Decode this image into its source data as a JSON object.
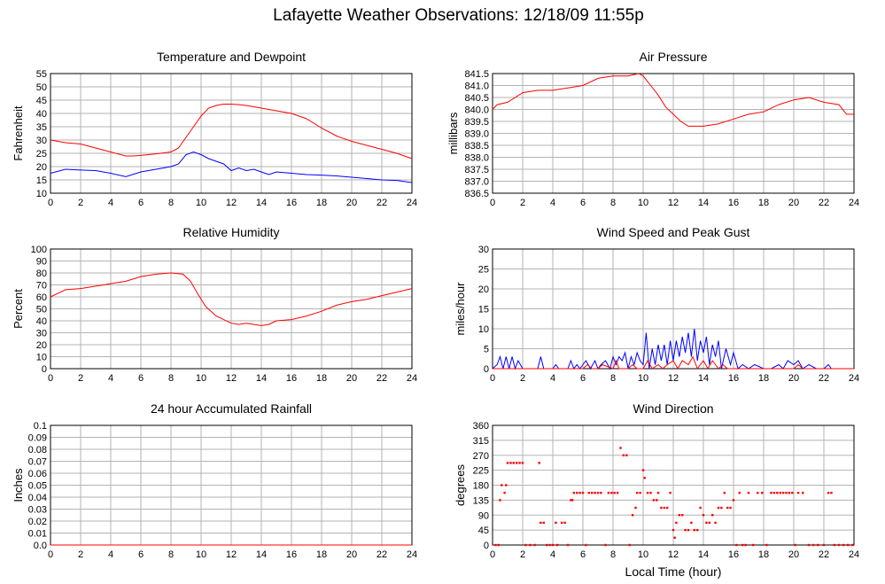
{
  "title": "Lafayette Weather Observations: 12/18/09 11:55p",
  "xlabel_bottom": "Local Time (hour)",
  "colors": {
    "red": "#ff0000",
    "blue": "#0000ff",
    "grid": "#b3b3b3",
    "axis": "#000000"
  },
  "chart_data": [
    {
      "id": "temp",
      "type": "line",
      "title": "Temperature and Dewpoint",
      "ylabel": "Fahrenheit",
      "xlim": [
        0,
        24
      ],
      "ylim": [
        10,
        55
      ],
      "xticks": [
        0,
        2,
        4,
        6,
        8,
        10,
        12,
        14,
        16,
        18,
        20,
        22,
        24
      ],
      "yticks": [
        10,
        15,
        20,
        25,
        30,
        35,
        40,
        45,
        50,
        55
      ],
      "ytick_labels": [
        "10",
        "15",
        "20",
        "25",
        "30",
        "35",
        "40",
        "45",
        "50",
        "55"
      ],
      "series": [
        {
          "color": "#ff0000",
          "x": [
            0,
            1,
            2,
            3,
            4,
            5,
            5.5,
            6,
            7,
            8,
            8.5,
            9,
            9.5,
            10,
            10.5,
            11,
            11.5,
            12,
            12.5,
            13,
            13.5,
            14,
            15,
            16,
            17,
            18,
            19,
            20,
            21,
            22,
            23,
            24
          ],
          "y": [
            30,
            29,
            28.5,
            27,
            25.5,
            24,
            24,
            24.2,
            24.8,
            25.5,
            27,
            31,
            35,
            39,
            42,
            43,
            43.5,
            43.5,
            43.3,
            43,
            42.5,
            42,
            41,
            40,
            38,
            34.5,
            31.5,
            29.5,
            28,
            26.5,
            25,
            23
          ]
        },
        {
          "color": "#0000ff",
          "x": [
            0,
            1,
            2,
            3,
            4,
            5,
            6,
            7,
            8,
            8.5,
            9,
            9.5,
            10,
            10.5,
            11,
            11.5,
            12,
            12.5,
            13,
            13.5,
            14,
            14.5,
            15,
            16,
            17,
            18,
            19,
            20,
            21,
            22,
            23,
            24
          ],
          "y": [
            17.5,
            19,
            18.7,
            18.5,
            17.5,
            16.2,
            18,
            19,
            20,
            21,
            24.5,
            25.5,
            24.5,
            23,
            22,
            21,
            18.5,
            19.5,
            18.5,
            19,
            18,
            17,
            18,
            17.5,
            17,
            16.8,
            16.5,
            16,
            15.5,
            15,
            14.8,
            14
          ]
        }
      ]
    },
    {
      "id": "pressure",
      "type": "line",
      "title": "Air Pressure",
      "ylabel": "millibars",
      "xlim": [
        0,
        24
      ],
      "ylim": [
        836.5,
        841.5
      ],
      "xticks": [
        0,
        2,
        4,
        6,
        8,
        10,
        12,
        14,
        16,
        18,
        20,
        22,
        24
      ],
      "yticks": [
        836.5,
        837.0,
        837.5,
        838.0,
        838.5,
        839.0,
        839.5,
        840.0,
        840.5,
        841.0,
        841.5
      ],
      "ytick_labels": [
        "836.5",
        "837.0",
        "837.5",
        "838.0",
        "838.5",
        "839.0",
        "839.5",
        "840.0",
        "840.5",
        "841.0",
        "841.5"
      ],
      "series": [
        {
          "color": "#ff0000",
          "x": [
            0,
            0.3,
            1,
            2,
            3,
            4,
            5,
            6,
            7,
            8,
            9,
            9.7,
            10,
            10.5,
            11,
            11.5,
            12,
            12.5,
            13,
            14,
            15,
            16,
            17,
            18,
            19,
            20,
            21,
            22,
            23,
            23.5,
            24
          ],
          "y": [
            840.0,
            840.2,
            840.3,
            840.7,
            840.8,
            840.8,
            840.9,
            841.0,
            841.3,
            841.4,
            841.4,
            841.5,
            841.4,
            841.0,
            840.6,
            840.1,
            839.8,
            839.5,
            839.3,
            839.3,
            839.4,
            839.6,
            839.8,
            839.9,
            840.2,
            840.4,
            840.5,
            840.3,
            840.2,
            839.8,
            839.8
          ]
        }
      ]
    },
    {
      "id": "humidity",
      "type": "line",
      "title": "Relative Humidity",
      "ylabel": "Percent",
      "xlim": [
        0,
        24
      ],
      "ylim": [
        0,
        100
      ],
      "xticks": [
        0,
        2,
        4,
        6,
        8,
        10,
        12,
        14,
        16,
        18,
        20,
        22,
        24
      ],
      "yticks": [
        0,
        10,
        20,
        30,
        40,
        50,
        60,
        70,
        80,
        90,
        100
      ],
      "ytick_labels": [
        "0",
        "10",
        "20",
        "30",
        "40",
        "50",
        "60",
        "70",
        "80",
        "90",
        "100"
      ],
      "series": [
        {
          "color": "#ff0000",
          "x": [
            0,
            0.5,
            1,
            2,
            3,
            4,
            5,
            6,
            7,
            8,
            8.8,
            9.3,
            9.8,
            10.3,
            11,
            11.5,
            12,
            12.5,
            13,
            13.5,
            14,
            14.5,
            15,
            16,
            17,
            18,
            19,
            20,
            21,
            22,
            23,
            24
          ],
          "y": [
            60,
            63,
            66,
            67,
            69,
            71,
            73,
            77,
            79,
            80,
            79,
            73,
            62,
            52,
            44,
            41,
            38,
            37,
            38,
            37,
            36,
            37,
            40,
            41,
            44,
            48,
            53,
            56,
            58,
            61,
            64,
            67
          ]
        }
      ]
    },
    {
      "id": "wind",
      "type": "line",
      "title": "Wind Speed and Peak Gust",
      "ylabel": "miles/hour",
      "xlim": [
        0,
        24
      ],
      "ylim": [
        0,
        30
      ],
      "xticks": [
        0,
        2,
        4,
        6,
        8,
        10,
        12,
        14,
        16,
        18,
        20,
        22,
        24
      ],
      "yticks": [
        0,
        5,
        10,
        15,
        20,
        25,
        30
      ],
      "ytick_labels": [
        "0",
        "5",
        "10",
        "15",
        "20",
        "25",
        "30"
      ],
      "series": [
        {
          "color": "#0000ff",
          "x": [
            0,
            0.3,
            0.5,
            0.7,
            0.9,
            1.1,
            1.3,
            1.5,
            1.7,
            2,
            3,
            3.2,
            3.4,
            4,
            4.2,
            4.4,
            5,
            5.2,
            5.4,
            5.6,
            5.8,
            6,
            6.2,
            6.5,
            6.8,
            7,
            7.2,
            7.5,
            7.8,
            8,
            8.2,
            8.4,
            8.6,
            8.8,
            9,
            9.2,
            9.4,
            9.6,
            9.8,
            10,
            10.2,
            10.4,
            10.6,
            10.8,
            11,
            11.2,
            11.4,
            11.6,
            11.8,
            12,
            12.2,
            12.4,
            12.6,
            12.8,
            13,
            13.2,
            13.4,
            13.6,
            13.8,
            14,
            14.2,
            14.4,
            14.6,
            14.8,
            15,
            15.2,
            15.5,
            15.8,
            16,
            16.3,
            16.6,
            17,
            17.4,
            18,
            18.5,
            19,
            19.3,
            19.6,
            20,
            20.3,
            20.6,
            21,
            21.5,
            22,
            22.3,
            22.5,
            23,
            24
          ],
          "y": [
            0,
            1,
            3,
            0,
            3,
            0,
            3,
            0,
            2,
            0,
            0,
            3,
            0,
            0,
            1,
            0,
            0,
            2,
            0,
            1,
            0,
            1,
            2,
            0,
            2,
            0,
            1,
            2,
            0,
            3,
            1,
            3,
            2,
            4,
            0,
            3,
            1,
            4,
            2,
            1,
            9,
            0,
            5,
            1,
            6,
            2,
            6,
            1,
            7,
            2,
            7,
            3,
            8,
            4,
            9,
            3,
            10,
            2,
            7,
            4,
            8,
            1,
            6,
            3,
            7,
            0,
            5,
            1,
            4,
            0,
            1,
            0,
            1,
            0,
            0,
            1,
            0,
            2,
            1,
            2,
            0,
            1,
            0,
            0,
            1,
            0,
            0,
            0
          ]
        },
        {
          "color": "#ff0000",
          "x": [
            0,
            1,
            3,
            3.2,
            3.4,
            6,
            6.3,
            6.6,
            7,
            7.3,
            8,
            8.2,
            8.4,
            9,
            9.3,
            9.6,
            10,
            10.3,
            10.6,
            11,
            11.3,
            11.6,
            12,
            12.3,
            12.6,
            13,
            13.3,
            13.6,
            14,
            14.3,
            14.6,
            15,
            15.3,
            15.6,
            16,
            20,
            20.3,
            20.6,
            21,
            24
          ],
          "y": [
            0,
            0,
            0,
            0,
            0,
            0,
            1,
            0,
            0,
            1,
            0,
            2,
            0,
            0,
            1,
            0,
            0,
            2,
            0,
            1,
            0,
            1,
            2,
            0,
            2,
            1,
            3,
            0,
            2,
            0,
            2,
            0,
            1,
            0,
            0,
            0,
            1,
            0,
            0,
            0
          ]
        }
      ]
    },
    {
      "id": "rain",
      "type": "line",
      "title": "24 hour Accumulated Rainfall",
      "ylabel": "Inches",
      "xlim": [
        0,
        24
      ],
      "ylim": [
        0,
        0.1
      ],
      "xticks": [
        0,
        2,
        4,
        6,
        8,
        10,
        12,
        14,
        16,
        18,
        20,
        22,
        24
      ],
      "yticks": [
        0,
        0.01,
        0.02,
        0.03,
        0.04,
        0.05,
        0.06,
        0.07,
        0.08,
        0.09,
        0.1
      ],
      "ytick_labels": [
        "0.0",
        "0.01",
        "0.02",
        "0.03",
        "0.04",
        "0.05",
        "0.06",
        "0.07",
        "0.08",
        "0.09",
        "0.1"
      ],
      "series": [
        {
          "color": "#ff0000",
          "x": [
            0,
            24
          ],
          "y": [
            0,
            0
          ]
        }
      ]
    },
    {
      "id": "direction",
      "type": "scatter",
      "title": "Wind Direction",
      "ylabel": "degrees",
      "xlim": [
        0,
        24
      ],
      "ylim": [
        0,
        360
      ],
      "xticks": [
        0,
        2,
        4,
        6,
        8,
        10,
        12,
        14,
        16,
        18,
        20,
        22,
        24
      ],
      "yticks": [
        0,
        45,
        90,
        135,
        180,
        225,
        270,
        315,
        360
      ],
      "ytick_labels": [
        "0",
        "45",
        "90",
        "135",
        "180",
        "225",
        "270",
        "315",
        "360"
      ],
      "points": [
        [
          0.2,
          0
        ],
        [
          0.4,
          0
        ],
        [
          0.6,
          180
        ],
        [
          0.5,
          135
        ],
        [
          0.8,
          157
        ],
        [
          0.9,
          180
        ],
        [
          1.0,
          247
        ],
        [
          1.2,
          247
        ],
        [
          1.4,
          247
        ],
        [
          1.6,
          247
        ],
        [
          1.8,
          247
        ],
        [
          2.0,
          247
        ],
        [
          2.2,
          0
        ],
        [
          2.5,
          0
        ],
        [
          2.8,
          0
        ],
        [
          3.1,
          247
        ],
        [
          3.2,
          67
        ],
        [
          3.4,
          67
        ],
        [
          3.6,
          0
        ],
        [
          3.8,
          0
        ],
        [
          4.0,
          0
        ],
        [
          4.2,
          67
        ],
        [
          4.3,
          0
        ],
        [
          4.6,
          67
        ],
        [
          4.8,
          67
        ],
        [
          5.0,
          0
        ],
        [
          5.2,
          135
        ],
        [
          5.3,
          135
        ],
        [
          5.4,
          157
        ],
        [
          5.6,
          157
        ],
        [
          5.8,
          157
        ],
        [
          6.0,
          157
        ],
        [
          6.2,
          0
        ],
        [
          6.4,
          157
        ],
        [
          6.6,
          157
        ],
        [
          6.8,
          157
        ],
        [
          7.0,
          157
        ],
        [
          7.2,
          157
        ],
        [
          7.5,
          0
        ],
        [
          7.7,
          157
        ],
        [
          7.9,
          157
        ],
        [
          8.1,
          157
        ],
        [
          8.3,
          157
        ],
        [
          8.5,
          292
        ],
        [
          8.7,
          270
        ],
        [
          8.9,
          270
        ],
        [
          9.1,
          0
        ],
        [
          9.3,
          90
        ],
        [
          9.5,
          112
        ],
        [
          9.6,
          157
        ],
        [
          9.8,
          157
        ],
        [
          10.0,
          225
        ],
        [
          10.1,
          202
        ],
        [
          10.3,
          157
        ],
        [
          10.5,
          157
        ],
        [
          10.7,
          135
        ],
        [
          10.9,
          135
        ],
        [
          11.0,
          157
        ],
        [
          11.2,
          112
        ],
        [
          11.4,
          112
        ],
        [
          11.6,
          112
        ],
        [
          11.8,
          157
        ],
        [
          12.0,
          45
        ],
        [
          12.1,
          22
        ],
        [
          12.2,
          67
        ],
        [
          12.4,
          90
        ],
        [
          12.6,
          90
        ],
        [
          12.8,
          45
        ],
        [
          13.0,
          45
        ],
        [
          13.2,
          67
        ],
        [
          13.4,
          45
        ],
        [
          13.6,
          45
        ],
        [
          13.8,
          112
        ],
        [
          14.0,
          90
        ],
        [
          14.2,
          67
        ],
        [
          14.4,
          67
        ],
        [
          14.6,
          90
        ],
        [
          14.8,
          67
        ],
        [
          15.0,
          112
        ],
        [
          15.2,
          112
        ],
        [
          15.4,
          157
        ],
        [
          15.6,
          112
        ],
        [
          15.8,
          112
        ],
        [
          16.0,
          135
        ],
        [
          16.2,
          0
        ],
        [
          16.4,
          157
        ],
        [
          16.6,
          0
        ],
        [
          16.8,
          0
        ],
        [
          17.0,
          157
        ],
        [
          17.3,
          0
        ],
        [
          17.6,
          157
        ],
        [
          17.9,
          157
        ],
        [
          18.2,
          0
        ],
        [
          18.5,
          157
        ],
        [
          18.7,
          157
        ],
        [
          18.9,
          157
        ],
        [
          19.1,
          157
        ],
        [
          19.3,
          157
        ],
        [
          19.5,
          157
        ],
        [
          19.7,
          157
        ],
        [
          19.9,
          157
        ],
        [
          20.1,
          0
        ],
        [
          20.3,
          157
        ],
        [
          20.6,
          157
        ],
        [
          21.0,
          0
        ],
        [
          21.3,
          0
        ],
        [
          21.6,
          0
        ],
        [
          22.0,
          0
        ],
        [
          22.3,
          157
        ],
        [
          22.5,
          157
        ],
        [
          22.7,
          0
        ],
        [
          23.0,
          0
        ],
        [
          23.3,
          0
        ],
        [
          23.6,
          0
        ],
        [
          23.9,
          0
        ]
      ]
    }
  ]
}
